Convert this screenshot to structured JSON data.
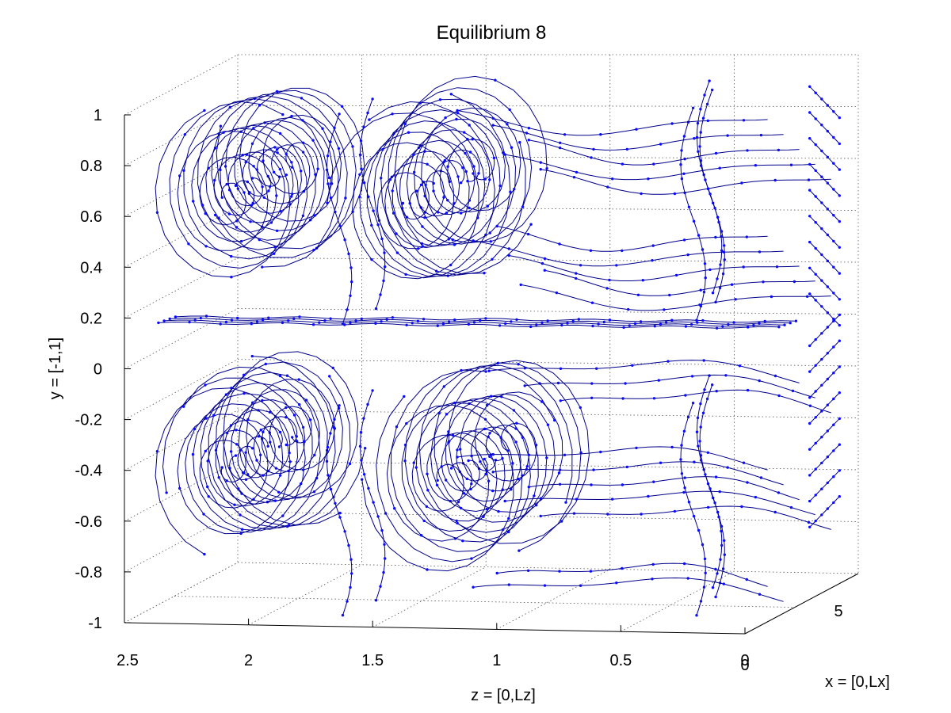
{
  "chart_data": {
    "type": "line",
    "title": "Equilibrium 8",
    "xlabel": "z = [0,Lz]",
    "ylabel": "y = [-1,1]",
    "zlabel": "x = [0,Lx]",
    "z_ticks": [
      "2.5",
      "2",
      "1.5",
      "1",
      "0.5",
      "0"
    ],
    "y_ticks": [
      "1",
      "0.8",
      "0.6",
      "0.4",
      "0.2",
      "0",
      "-0.2",
      "-0.4",
      "-0.6",
      "-0.8",
      "-1"
    ],
    "x_ticks": [
      "0",
      "5"
    ],
    "zlim": [
      0,
      2.5
    ],
    "ylim": [
      -1,
      1
    ],
    "xlim": [
      0,
      5.5
    ],
    "grid": true,
    "series_color": "#0000ff",
    "vortices": [
      {
        "z": 2.15,
        "y": 0.64,
        "turns": 3.2,
        "r": 0.47,
        "dir": 1
      },
      {
        "z": 1.42,
        "y": 0.62,
        "turns": 3.0,
        "r": 0.5,
        "dir": -1
      },
      {
        "z": 2.15,
        "y": -0.42,
        "turns": 3.2,
        "r": 0.47,
        "dir": -1
      },
      {
        "z": 1.28,
        "y": -0.46,
        "turns": 3.0,
        "r": 0.5,
        "dir": 1
      }
    ]
  }
}
